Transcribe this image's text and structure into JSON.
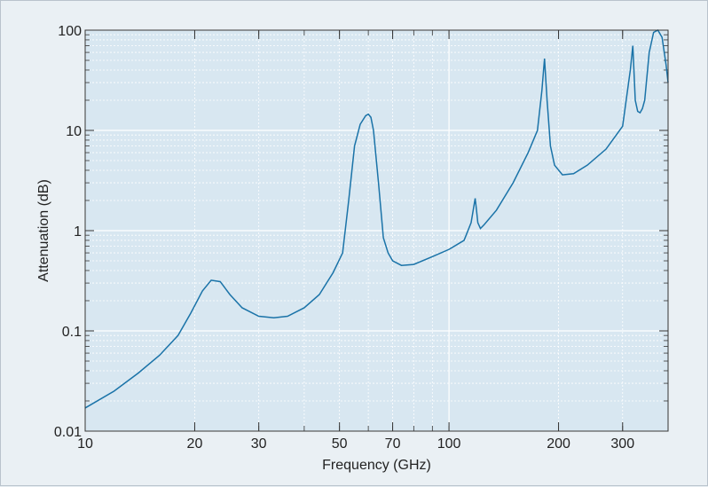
{
  "chart_data": {
    "type": "line",
    "title": "",
    "xlabel": "Frequency (GHz)",
    "ylabel": "Attenuation (dB)",
    "x_scale": "log",
    "y_scale": "log",
    "xlim": [
      10,
      400
    ],
    "ylim": [
      0.01,
      100
    ],
    "x_ticks": [
      {
        "value": 10,
        "label": "10"
      },
      {
        "value": 20,
        "label": "20"
      },
      {
        "value": 30,
        "label": "30"
      },
      {
        "value": 50,
        "label": "50"
      },
      {
        "value": 70,
        "label": "70"
      },
      {
        "value": 100,
        "label": "100"
      },
      {
        "value": 200,
        "label": "200"
      },
      {
        "value": 300,
        "label": "300"
      }
    ],
    "y_ticks": [
      {
        "value": 0.01,
        "label": "0.01"
      },
      {
        "value": 0.1,
        "label": "0.1"
      },
      {
        "value": 1,
        "label": "1"
      },
      {
        "value": 10,
        "label": "10"
      },
      {
        "value": 100,
        "label": "100"
      }
    ],
    "grid": true,
    "legend": "none",
    "colors": {
      "line": "#1a73a8",
      "plot_bg": "#d8e7f1",
      "grid": "#ffffff"
    },
    "series": [
      {
        "x": [
          10,
          12,
          14,
          16,
          18,
          19.5,
          21,
          22.2,
          23.5,
          25,
          27,
          30,
          33,
          36,
          40,
          44,
          48,
          51,
          53,
          55,
          57,
          59,
          60,
          61,
          62,
          64,
          66,
          68,
          70,
          74,
          80,
          90,
          100,
          110,
          115,
          118,
          119,
          120,
          122,
          125,
          135,
          150,
          165,
          175,
          180,
          183,
          186,
          190,
          195,
          205,
          220,
          240,
          270,
          300,
          315,
          320,
          325,
          330,
          335,
          340,
          345,
          355,
          365,
          375,
          385,
          395,
          400
        ],
        "y": [
          0.017,
          0.025,
          0.038,
          0.057,
          0.09,
          0.15,
          0.25,
          0.32,
          0.31,
          0.23,
          0.17,
          0.14,
          0.135,
          0.14,
          0.17,
          0.23,
          0.38,
          0.6,
          2,
          7,
          11.5,
          14,
          14.5,
          13.5,
          10,
          3,
          0.85,
          0.6,
          0.5,
          0.45,
          0.46,
          0.55,
          0.65,
          0.8,
          1.2,
          2.1,
          1.6,
          1.2,
          1.05,
          1.15,
          1.6,
          3,
          6,
          10,
          25,
          52,
          20,
          7,
          4.5,
          3.6,
          3.7,
          4.5,
          6.5,
          11,
          40,
          70,
          20,
          15.5,
          15,
          16.5,
          20,
          60,
          95,
          100,
          85,
          45,
          30
        ]
      }
    ]
  }
}
